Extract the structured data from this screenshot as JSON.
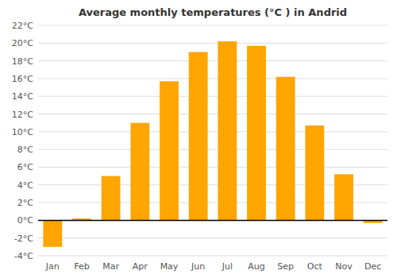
{
  "chart_data": {
    "type": "bar",
    "title": "Average monthly temperatures (°C ) in Andrid",
    "categories": [
      "Jan",
      "Feb",
      "Mar",
      "Apr",
      "May",
      "Jun",
      "Jul",
      "Aug",
      "Sep",
      "Oct",
      "Nov",
      "Dec"
    ],
    "values": [
      -3.0,
      0.2,
      5.0,
      11.0,
      15.7,
      19.0,
      20.2,
      19.7,
      16.2,
      10.7,
      5.2,
      -0.3
    ],
    "color": "#FFA500",
    "ylim": [
      -4,
      22
    ],
    "yticks": [
      {
        "value": -4,
        "label": "-4°C"
      },
      {
        "value": -2,
        "label": "-2°C"
      },
      {
        "value": 0,
        "label": "0°C"
      },
      {
        "value": 2,
        "label": "2°C"
      },
      {
        "value": 4,
        "label": "4°C"
      },
      {
        "value": 6,
        "label": "6°C"
      },
      {
        "value": 8,
        "label": "8°C"
      },
      {
        "value": 10,
        "label": "10°C"
      },
      {
        "value": 12,
        "label": "12°C"
      },
      {
        "value": 14,
        "label": "14°C"
      },
      {
        "value": 16,
        "label": "16°C"
      },
      {
        "value": 18,
        "label": "18°C"
      },
      {
        "value": 20,
        "label": "20°C"
      },
      {
        "value": 22,
        "label": "22°C"
      }
    ],
    "grid": true
  }
}
